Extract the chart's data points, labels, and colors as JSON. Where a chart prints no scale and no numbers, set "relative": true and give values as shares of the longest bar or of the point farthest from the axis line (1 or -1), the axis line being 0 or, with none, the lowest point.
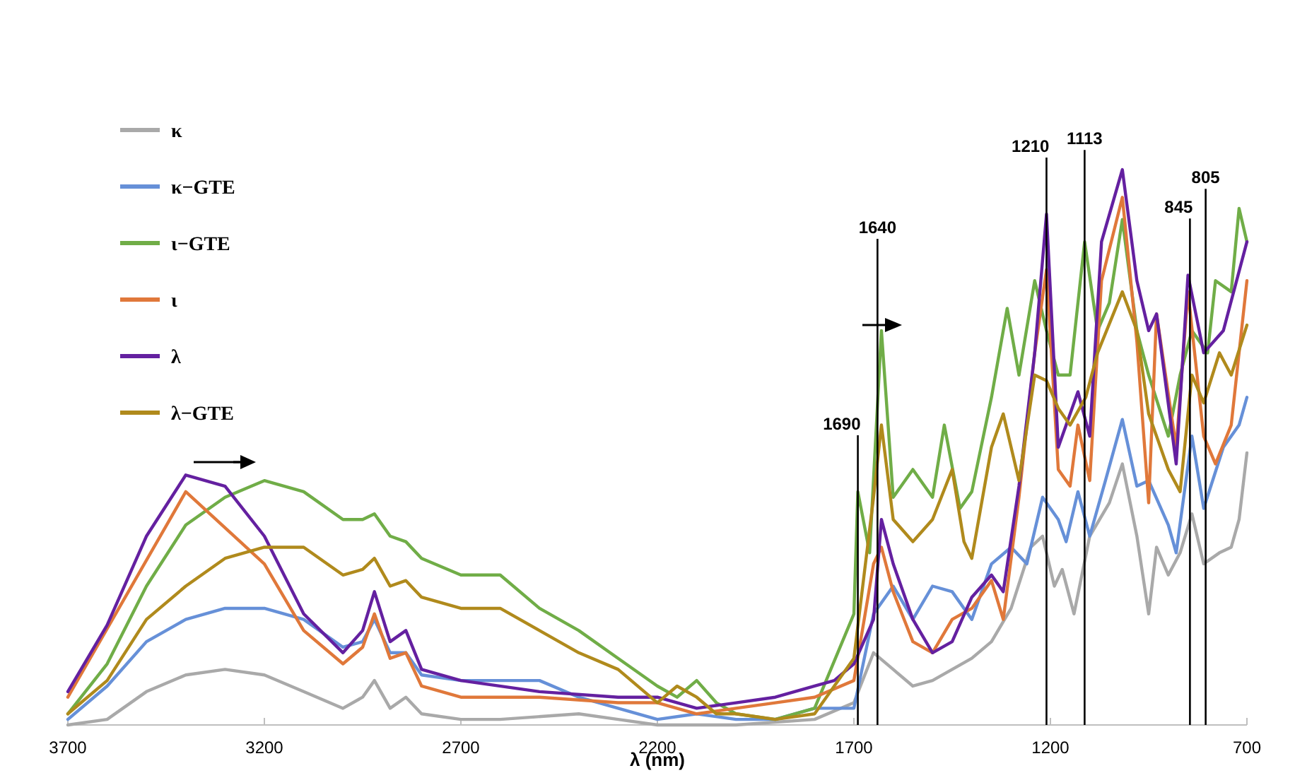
{
  "chart_data": {
    "type": "line",
    "xlabel": "λ (nm)",
    "relative": true,
    "xlim": [
      3700,
      700
    ],
    "xticks": [
      3700,
      3200,
      2700,
      2200,
      1700,
      1200,
      700
    ],
    "legend": "top left",
    "series": [
      {
        "name": "κ",
        "color": "#a9a9a9",
        "x": [
          3700,
          3600,
          3500,
          3400,
          3300,
          3200,
          3100,
          3000,
          2950,
          2920,
          2880,
          2840,
          2800,
          2700,
          2600,
          2400,
          2300,
          2200,
          2000,
          1800,
          1700,
          1650,
          1600,
          1550,
          1500,
          1450,
          1400,
          1350,
          1300,
          1250,
          1220,
          1190,
          1170,
          1140,
          1100,
          1050,
          1017,
          980,
          950,
          930,
          900,
          870,
          840,
          810,
          770,
          740,
          720,
          700
        ],
        "values": [
          0,
          0.01,
          0.06,
          0.09,
          0.1,
          0.09,
          0.06,
          0.03,
          0.05,
          0.08,
          0.03,
          0.05,
          0.02,
          0.01,
          0.01,
          0.02,
          0.01,
          0,
          0,
          0.01,
          0.04,
          0.13,
          0.1,
          0.07,
          0.08,
          0.1,
          0.12,
          0.15,
          0.21,
          0.32,
          0.34,
          0.25,
          0.28,
          0.2,
          0.34,
          0.4,
          0.47,
          0.34,
          0.2,
          0.32,
          0.27,
          0.31,
          0.38,
          0.29,
          0.31,
          0.32,
          0.37,
          0.49
        ]
      },
      {
        "name": "κ−GTE",
        "color": "#6690d8",
        "x": [
          3700,
          3600,
          3500,
          3400,
          3300,
          3200,
          3100,
          3000,
          2950,
          2920,
          2880,
          2840,
          2800,
          2700,
          2600,
          2500,
          2400,
          2300,
          2200,
          2100,
          2000,
          1900,
          1800,
          1700,
          1650,
          1600,
          1550,
          1500,
          1450,
          1400,
          1350,
          1300,
          1260,
          1220,
          1180,
          1160,
          1130,
          1100,
          1060,
          1017,
          980,
          950,
          900,
          880,
          840,
          810,
          760,
          720,
          700
        ],
        "values": [
          0.01,
          0.07,
          0.15,
          0.19,
          0.21,
          0.21,
          0.19,
          0.14,
          0.15,
          0.19,
          0.13,
          0.13,
          0.09,
          0.08,
          0.08,
          0.08,
          0.05,
          0.03,
          0.01,
          0.02,
          0.01,
          0.01,
          0.03,
          0.03,
          0.2,
          0.25,
          0.19,
          0.25,
          0.24,
          0.19,
          0.29,
          0.32,
          0.29,
          0.41,
          0.37,
          0.33,
          0.42,
          0.34,
          0.44,
          0.55,
          0.43,
          0.44,
          0.36,
          0.31,
          0.52,
          0.39,
          0.5,
          0.54,
          0.59
        ]
      },
      {
        "name": "ι−GTE",
        "color": "#70ad47",
        "x": [
          3700,
          3600,
          3500,
          3400,
          3300,
          3200,
          3100,
          3000,
          2950,
          2920,
          2880,
          2840,
          2800,
          2700,
          2600,
          2500,
          2400,
          2300,
          2200,
          2150,
          2100,
          2050,
          2000,
          1900,
          1800,
          1700,
          1690,
          1660,
          1630,
          1600,
          1550,
          1500,
          1470,
          1430,
          1400,
          1350,
          1310,
          1280,
          1240,
          1210,
          1180,
          1150,
          1113,
          1080,
          1050,
          1017,
          980,
          950,
          900,
          870,
          840,
          800,
          780,
          740,
          720,
          700
        ],
        "values": [
          0.02,
          0.11,
          0.25,
          0.36,
          0.41,
          0.44,
          0.42,
          0.37,
          0.37,
          0.38,
          0.34,
          0.33,
          0.3,
          0.27,
          0.27,
          0.21,
          0.17,
          0.12,
          0.07,
          0.05,
          0.08,
          0.04,
          0.02,
          0.01,
          0.03,
          0.2,
          0.42,
          0.31,
          0.71,
          0.41,
          0.46,
          0.41,
          0.54,
          0.39,
          0.42,
          0.59,
          0.75,
          0.63,
          0.8,
          0.71,
          0.63,
          0.63,
          0.87,
          0.71,
          0.76,
          0.91,
          0.71,
          0.63,
          0.52,
          0.63,
          0.71,
          0.67,
          0.8,
          0.78,
          0.93,
          0.87
        ]
      },
      {
        "name": "ι",
        "color": "#e0783a",
        "x": [
          3700,
          3400,
          3200,
          3100,
          3000,
          2950,
          2920,
          2880,
          2840,
          2800,
          2700,
          2500,
          2300,
          2200,
          2100,
          2000,
          1900,
          1800,
          1700,
          1650,
          1630,
          1600,
          1550,
          1500,
          1450,
          1400,
          1350,
          1320,
          1280,
          1240,
          1210,
          1180,
          1150,
          1130,
          1100,
          1070,
          1017,
          980,
          950,
          930,
          880,
          850,
          810,
          780,
          740,
          700
        ],
        "values": [
          0.05,
          0.42,
          0.29,
          0.17,
          0.11,
          0.14,
          0.2,
          0.12,
          0.13,
          0.07,
          0.05,
          0.05,
          0.04,
          0.04,
          0.02,
          0.03,
          0.04,
          0.05,
          0.08,
          0.29,
          0.32,
          0.24,
          0.15,
          0.13,
          0.19,
          0.21,
          0.26,
          0.19,
          0.41,
          0.67,
          0.82,
          0.46,
          0.43,
          0.54,
          0.44,
          0.8,
          0.95,
          0.69,
          0.4,
          0.74,
          0.5,
          0.78,
          0.52,
          0.47,
          0.54,
          0.8
        ]
      },
      {
        "name": "λ",
        "color": "#6420a0",
        "x": [
          3700,
          3600,
          3500,
          3400,
          3300,
          3200,
          3100,
          3000,
          2950,
          2920,
          2880,
          2840,
          2800,
          2700,
          2500,
          2300,
          2200,
          2100,
          2000,
          1900,
          1800,
          1750,
          1700,
          1650,
          1630,
          1600,
          1550,
          1500,
          1450,
          1400,
          1350,
          1320,
          1280,
          1240,
          1210,
          1180,
          1130,
          1100,
          1070,
          1017,
          980,
          950,
          930,
          880,
          850,
          810,
          760,
          700
        ],
        "values": [
          0.06,
          0.18,
          0.34,
          0.45,
          0.43,
          0.34,
          0.2,
          0.13,
          0.17,
          0.24,
          0.15,
          0.17,
          0.1,
          0.08,
          0.06,
          0.05,
          0.05,
          0.03,
          0.04,
          0.05,
          0.07,
          0.08,
          0.11,
          0.19,
          0.37,
          0.29,
          0.19,
          0.13,
          0.15,
          0.23,
          0.27,
          0.24,
          0.43,
          0.67,
          0.92,
          0.5,
          0.6,
          0.52,
          0.87,
          1,
          0.8,
          0.71,
          0.74,
          0.47,
          0.81,
          0.67,
          0.71,
          0.87
        ]
      },
      {
        "name": "λ−GTE",
        "color": "#b08a1c",
        "x": [
          3700,
          3600,
          3500,
          3400,
          3300,
          3200,
          3100,
          3000,
          2950,
          2920,
          2880,
          2840,
          2800,
          2700,
          2600,
          2500,
          2400,
          2300,
          2200,
          2150,
          2100,
          2050,
          2000,
          1900,
          1800,
          1700,
          1650,
          1630,
          1600,
          1550,
          1500,
          1450,
          1420,
          1400,
          1350,
          1320,
          1280,
          1240,
          1210,
          1180,
          1150,
          1110,
          1080,
          1017,
          980,
          950,
          900,
          870,
          840,
          810,
          770,
          740,
          700
        ],
        "values": [
          0.02,
          0.08,
          0.19,
          0.25,
          0.3,
          0.32,
          0.32,
          0.27,
          0.28,
          0.3,
          0.25,
          0.26,
          0.23,
          0.21,
          0.21,
          0.17,
          0.13,
          0.1,
          0.04,
          0.07,
          0.05,
          0.02,
          0.02,
          0.01,
          0.02,
          0.12,
          0.41,
          0.54,
          0.37,
          0.33,
          0.37,
          0.46,
          0.33,
          0.3,
          0.5,
          0.56,
          0.44,
          0.63,
          0.62,
          0.57,
          0.54,
          0.59,
          0.67,
          0.78,
          0.71,
          0.56,
          0.46,
          0.42,
          0.63,
          0.58,
          0.67,
          0.63,
          0.72
        ]
      }
    ],
    "ref_lines": [
      {
        "axis": "x",
        "value": 1690,
        "label": "1690"
      },
      {
        "axis": "x",
        "value": 1640,
        "label": "1640"
      },
      {
        "axis": "x",
        "value": 1210,
        "label": "1210"
      },
      {
        "axis": "x",
        "value": 1113,
        "label": "1113"
      },
      {
        "axis": "x",
        "value": 845,
        "label": "845"
      },
      {
        "axis": "x",
        "value": 805,
        "label": "805"
      }
    ]
  }
}
